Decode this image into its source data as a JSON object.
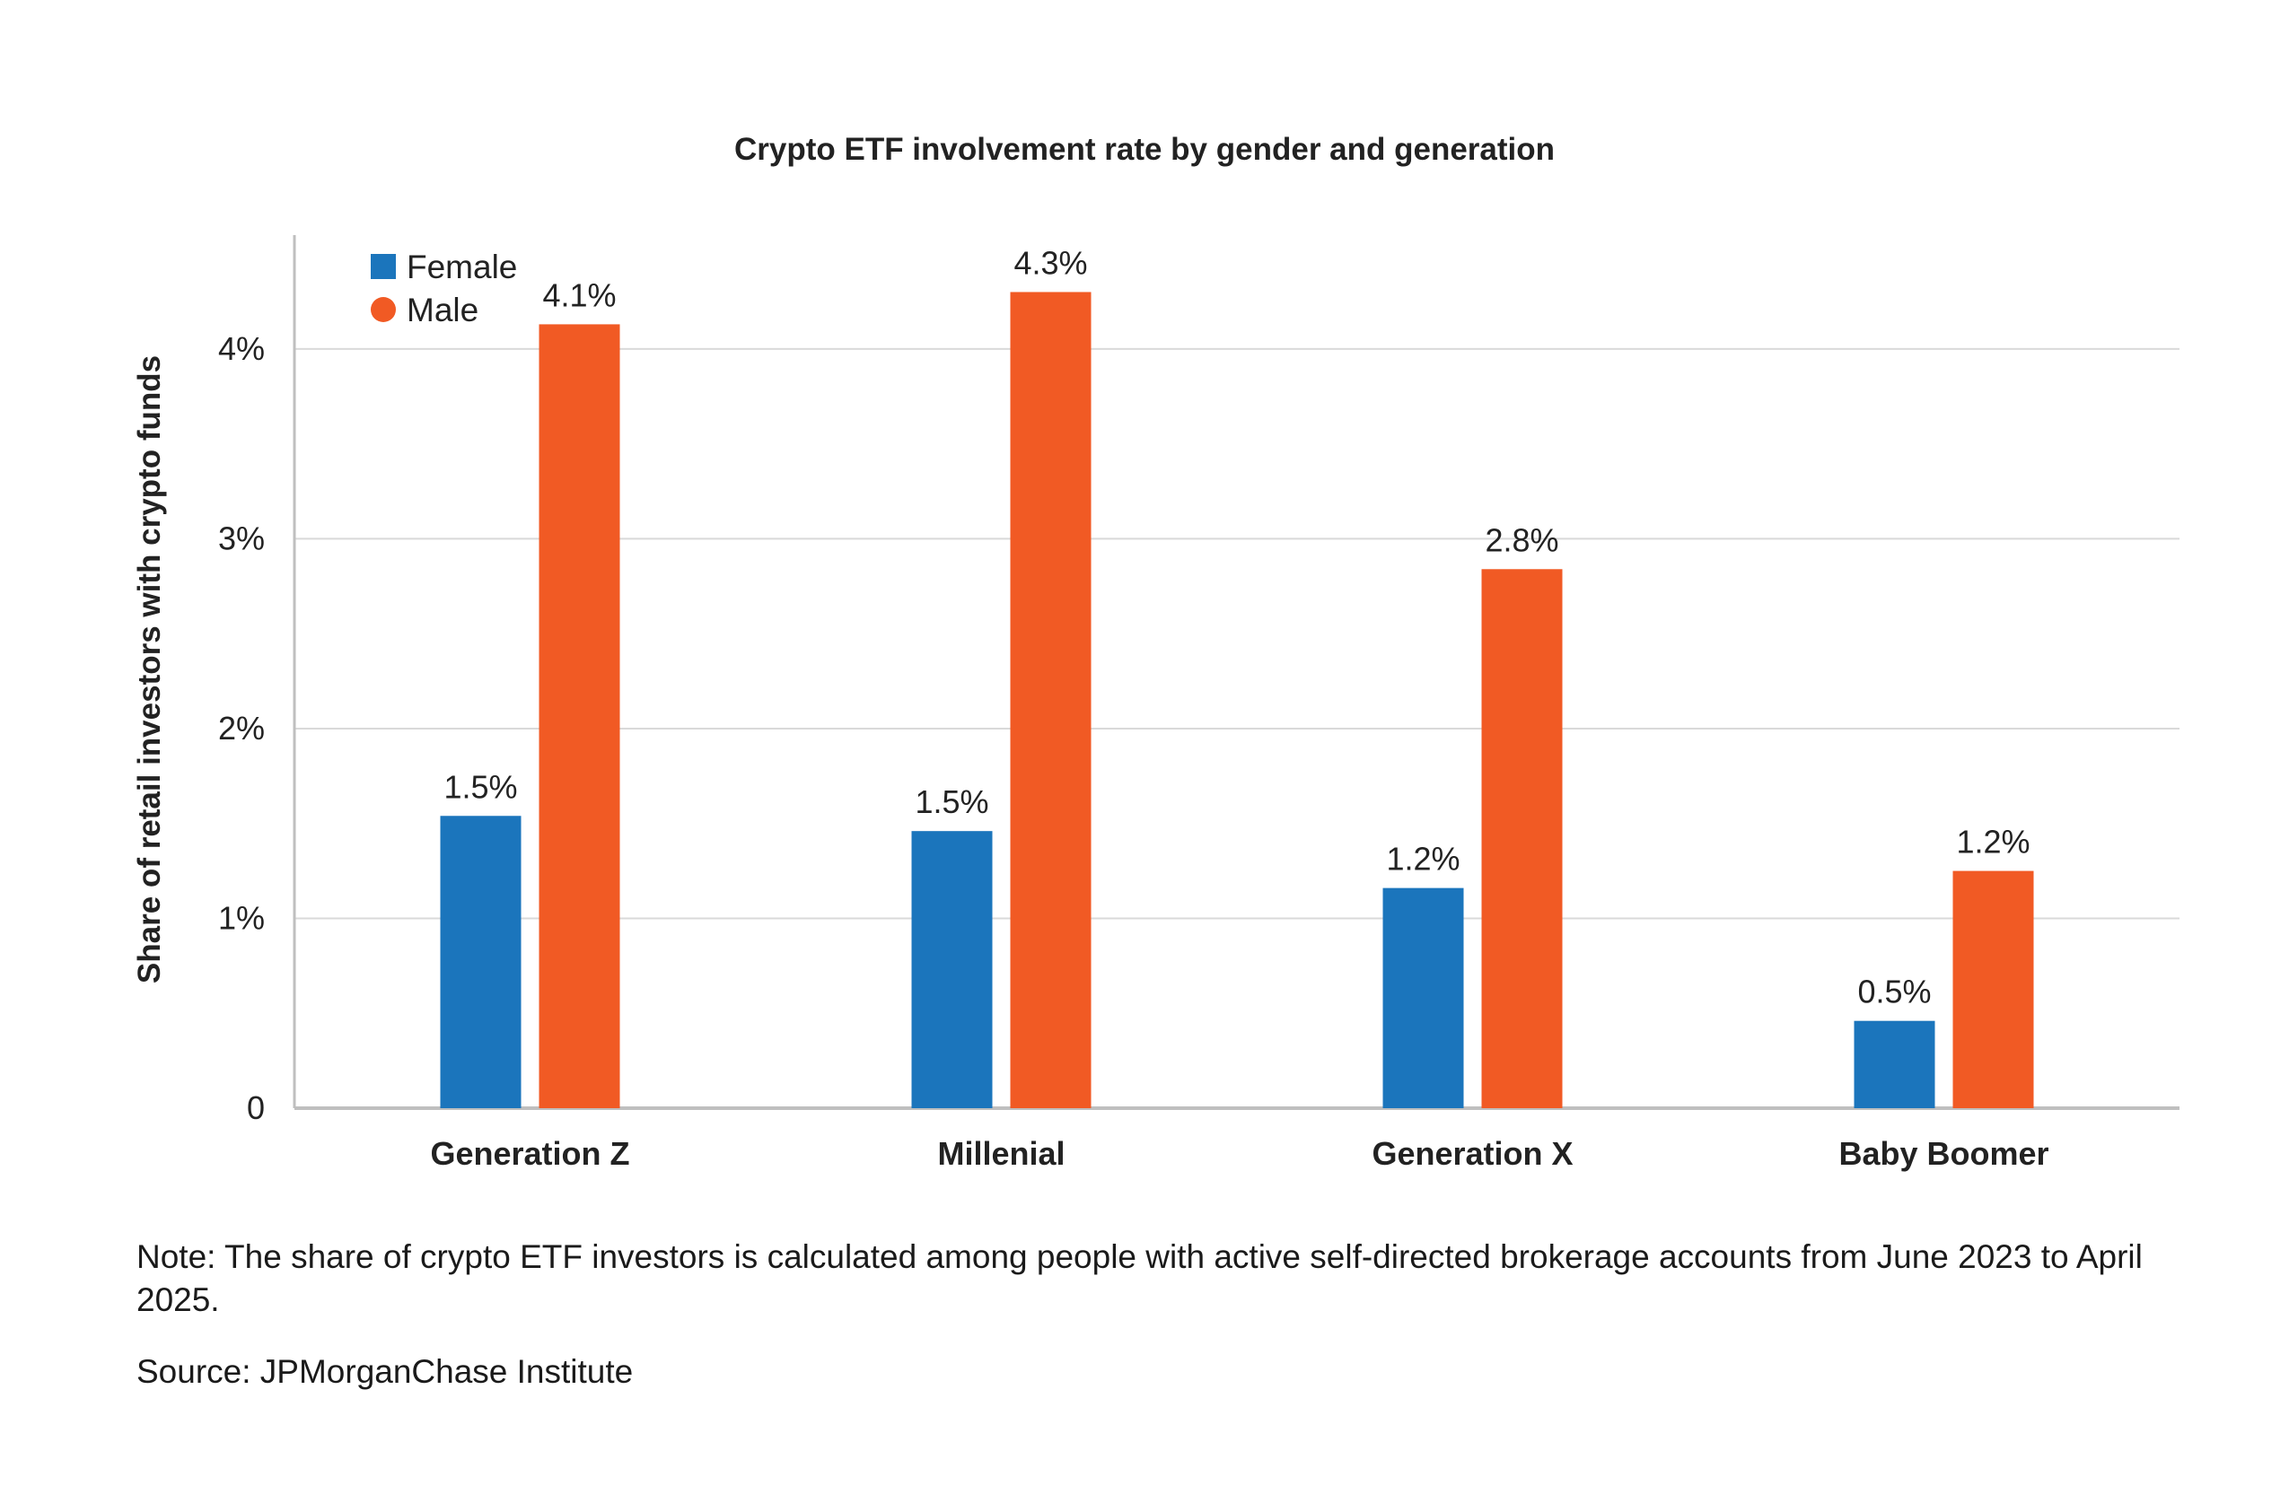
{
  "chart_data": {
    "type": "bar",
    "title": "Crypto ETF involvement rate by gender and generation",
    "xlabel": "",
    "ylabel": "Share of retail investors with crypto funds",
    "categories": [
      "Generation Z",
      "Millenial",
      "Generation X",
      "Baby Boomer"
    ],
    "series": [
      {
        "name": "Female",
        "color": "#1b75bc",
        "values": [
          1.54,
          1.46,
          1.16,
          0.46
        ],
        "labels": [
          "1.5%",
          "1.5%",
          "1.2%",
          "0.5%"
        ]
      },
      {
        "name": "Male",
        "color": "#f15a24",
        "values": [
          4.13,
          4.3,
          2.84,
          1.25
        ],
        "labels": [
          "4.1%",
          "4.3%",
          "2.8%",
          "1.2%"
        ]
      }
    ],
    "ylim": [
      0,
      4.6
    ],
    "yticks": [
      0,
      1,
      2,
      3,
      4
    ],
    "ytick_labels": [
      "0",
      "1%",
      "2%",
      "3%",
      "4%"
    ],
    "grid": true,
    "legend_position": "top-left",
    "legend_markers": [
      "square",
      "circle"
    ]
  },
  "note": "Note: The share of crypto ETF investors is calculated among people with active self-directed brokerage accounts from June 2023 to April 2025.",
  "source": "Source: JPMorganChase Institute"
}
